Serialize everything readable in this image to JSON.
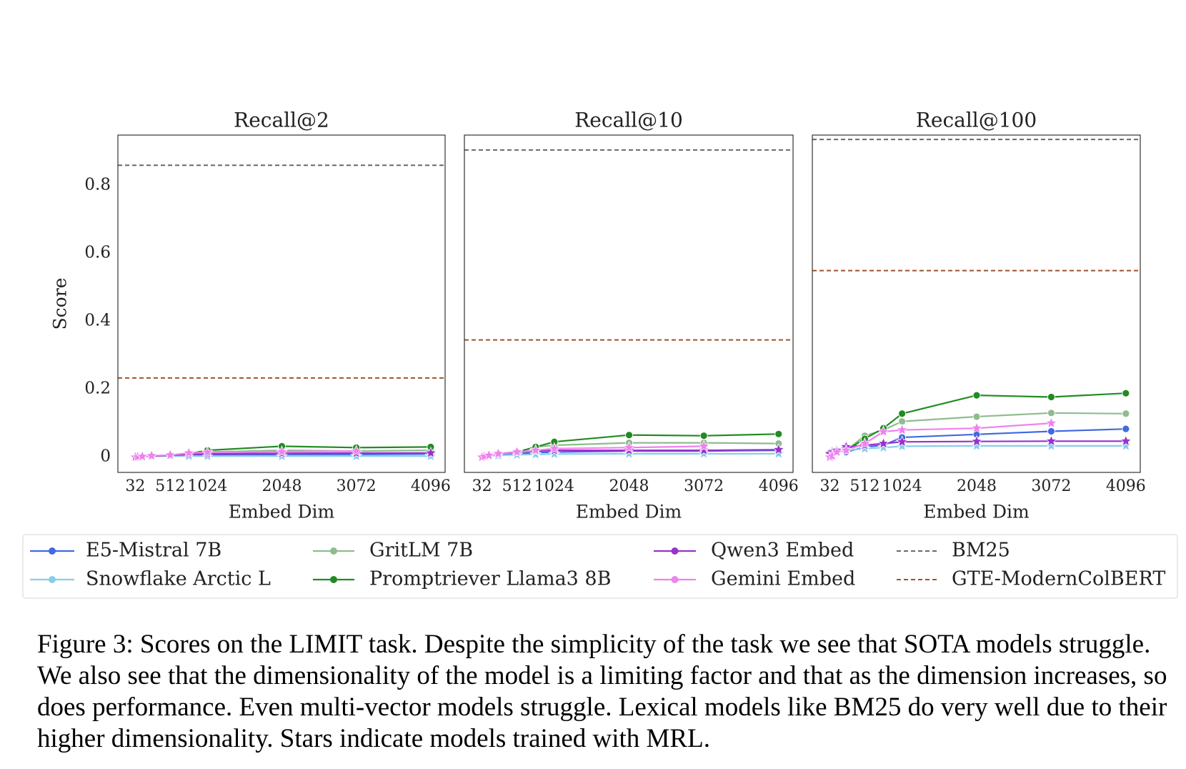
{
  "chart_data": [
    {
      "type": "line",
      "title": "Recall@2",
      "xlabel": "Embed Dim",
      "ylabel": "Score",
      "x": [
        32,
        64,
        128,
        256,
        512,
        768,
        1024,
        2048,
        3072,
        4096
      ],
      "xlim": [
        -208,
        4294
      ],
      "xticks": [
        32,
        512,
        1024,
        2048,
        3072,
        4096
      ],
      "ylim": [
        -0.045,
        0.948
      ],
      "yticks": [
        0.0,
        0.2,
        0.4,
        0.6,
        0.8
      ],
      "series": [
        {
          "name": "E5-Mistral 7B",
          "color": "#4169e1",
          "marker": "circle",
          "values": [
            null,
            null,
            null,
            0.003,
            0.005,
            0.006,
            0.007,
            0.008,
            0.008,
            0.009
          ]
        },
        {
          "name": "Snowflake Arctic L",
          "color": "#87ceeb",
          "marker": "star",
          "values": [
            0.0,
            0.001,
            0.002,
            0.003,
            0.003,
            0.003,
            0.003,
            0.003,
            0.003,
            0.003
          ]
        },
        {
          "name": "GritLM 7B",
          "color": "#8fbc8f",
          "marker": "circle",
          "values": [
            null,
            null,
            null,
            0.003,
            0.006,
            0.012,
            0.015,
            0.02,
            0.018,
            0.02
          ]
        },
        {
          "name": "Promptriever Llama3 8B",
          "color": "#228b22",
          "marker": "circle",
          "values": [
            null,
            null,
            null,
            0.003,
            0.005,
            0.01,
            0.02,
            0.032,
            0.028,
            0.03
          ]
        },
        {
          "name": "Qwen3 Embed",
          "color": "#9932cc",
          "marker": "star",
          "values": [
            0.0,
            0.001,
            0.002,
            0.003,
            0.005,
            0.008,
            0.01,
            0.011,
            0.012,
            0.012
          ]
        },
        {
          "name": "Gemini Embed",
          "color": "#ee82ee",
          "marker": "star",
          "values": [
            0.0,
            0.001,
            0.002,
            0.004,
            0.006,
            0.012,
            0.014,
            0.016,
            0.018,
            null
          ]
        }
      ],
      "hlines": [
        {
          "name": "BM25",
          "color": "#696969",
          "value": 0.859
        },
        {
          "name": "GTE-ModernColBERT",
          "color": "#a0522d",
          "value": 0.233
        }
      ]
    },
    {
      "type": "line",
      "title": "Recall@10",
      "xlabel": "Embed Dim",
      "x": [
        32,
        64,
        128,
        256,
        512,
        768,
        1024,
        2048,
        3072,
        4096
      ],
      "xlim": [
        -208,
        4294
      ],
      "xticks": [
        32,
        512,
        1024,
        2048,
        3072,
        4096
      ],
      "ylim": [
        -0.045,
        0.948
      ],
      "series": [
        {
          "color": "#4169e1",
          "marker": "circle",
          "values": [
            null,
            null,
            null,
            0.005,
            0.01,
            0.013,
            0.015,
            0.018,
            0.018,
            0.02
          ]
        },
        {
          "color": "#87ceeb",
          "marker": "star",
          "values": [
            0.0,
            0.002,
            0.004,
            0.005,
            0.007,
            0.008,
            0.009,
            0.01,
            0.01,
            0.01
          ]
        },
        {
          "color": "#8fbc8f",
          "marker": "circle",
          "values": [
            null,
            null,
            null,
            0.01,
            0.015,
            0.03,
            0.035,
            0.042,
            0.042,
            0.04
          ]
        },
        {
          "color": "#228b22",
          "marker": "circle",
          "values": [
            null,
            null,
            null,
            0.01,
            0.015,
            0.03,
            0.045,
            0.065,
            0.063,
            0.068
          ]
        },
        {
          "color": "#9932cc",
          "marker": "star",
          "values": [
            0.0,
            0.002,
            0.005,
            0.01,
            0.015,
            0.018,
            0.02,
            0.02,
            0.02,
            0.022
          ]
        },
        {
          "color": "#ee82ee",
          "marker": "star",
          "values": [
            0.0,
            0.002,
            0.005,
            0.01,
            0.015,
            0.02,
            0.025,
            0.028,
            0.032,
            null
          ]
        }
      ],
      "hlines": [
        {
          "color": "#696969",
          "value": 0.904
        },
        {
          "color": "#a0522d",
          "value": 0.345
        }
      ]
    },
    {
      "type": "line",
      "title": "Recall@100",
      "xlabel": "Embed Dim",
      "x": [
        32,
        64,
        128,
        256,
        512,
        768,
        1024,
        2048,
        3072,
        4096
      ],
      "xlim": [
        -208,
        4294
      ],
      "xticks": [
        32,
        512,
        1024,
        2048,
        3072,
        4096
      ],
      "ylim": [
        -0.045,
        0.948
      ],
      "series": [
        {
          "color": "#4169e1",
          "marker": "circle",
          "values": [
            null,
            null,
            null,
            0.015,
            0.03,
            0.035,
            0.058,
            0.067,
            0.076,
            0.083
          ]
        },
        {
          "color": "#87ceeb",
          "marker": "star",
          "values": [
            0.01,
            0.012,
            0.015,
            0.02,
            0.025,
            0.028,
            0.032,
            0.033,
            0.033,
            0.033
          ]
        },
        {
          "color": "#8fbc8f",
          "marker": "circle",
          "values": [
            null,
            null,
            null,
            0.02,
            0.063,
            0.08,
            0.105,
            0.119,
            0.13,
            0.128
          ]
        },
        {
          "color": "#228b22",
          "marker": "circle",
          "values": [
            null,
            null,
            null,
            0.02,
            0.054,
            0.085,
            0.128,
            0.182,
            0.177,
            0.188
          ]
        },
        {
          "color": "#9932cc",
          "marker": "star",
          "values": [
            0.01,
            0.015,
            0.02,
            0.03,
            0.035,
            0.04,
            0.045,
            0.046,
            0.047,
            0.047
          ]
        },
        {
          "color": "#ee82ee",
          "marker": "star",
          "values": [
            0.0,
            0.003,
            0.015,
            0.02,
            0.04,
            0.075,
            0.08,
            0.085,
            0.1,
            null
          ]
        }
      ],
      "hlines": [
        {
          "color": "#696969",
          "value": 0.935
        },
        {
          "color": "#a0522d",
          "value": 0.549
        }
      ]
    }
  ],
  "caption": "Figure 3: Scores on the LIMIT task. Despite the simplicity of the task we see that SOTA models struggle. We also see that the dimensionality of the model is a limiting factor and that as the dimension increases, so does performance. Even multi-vector models struggle. Lexical models like BM25 do very well due to their higher dimensionality. Stars indicate models trained with MRL."
}
